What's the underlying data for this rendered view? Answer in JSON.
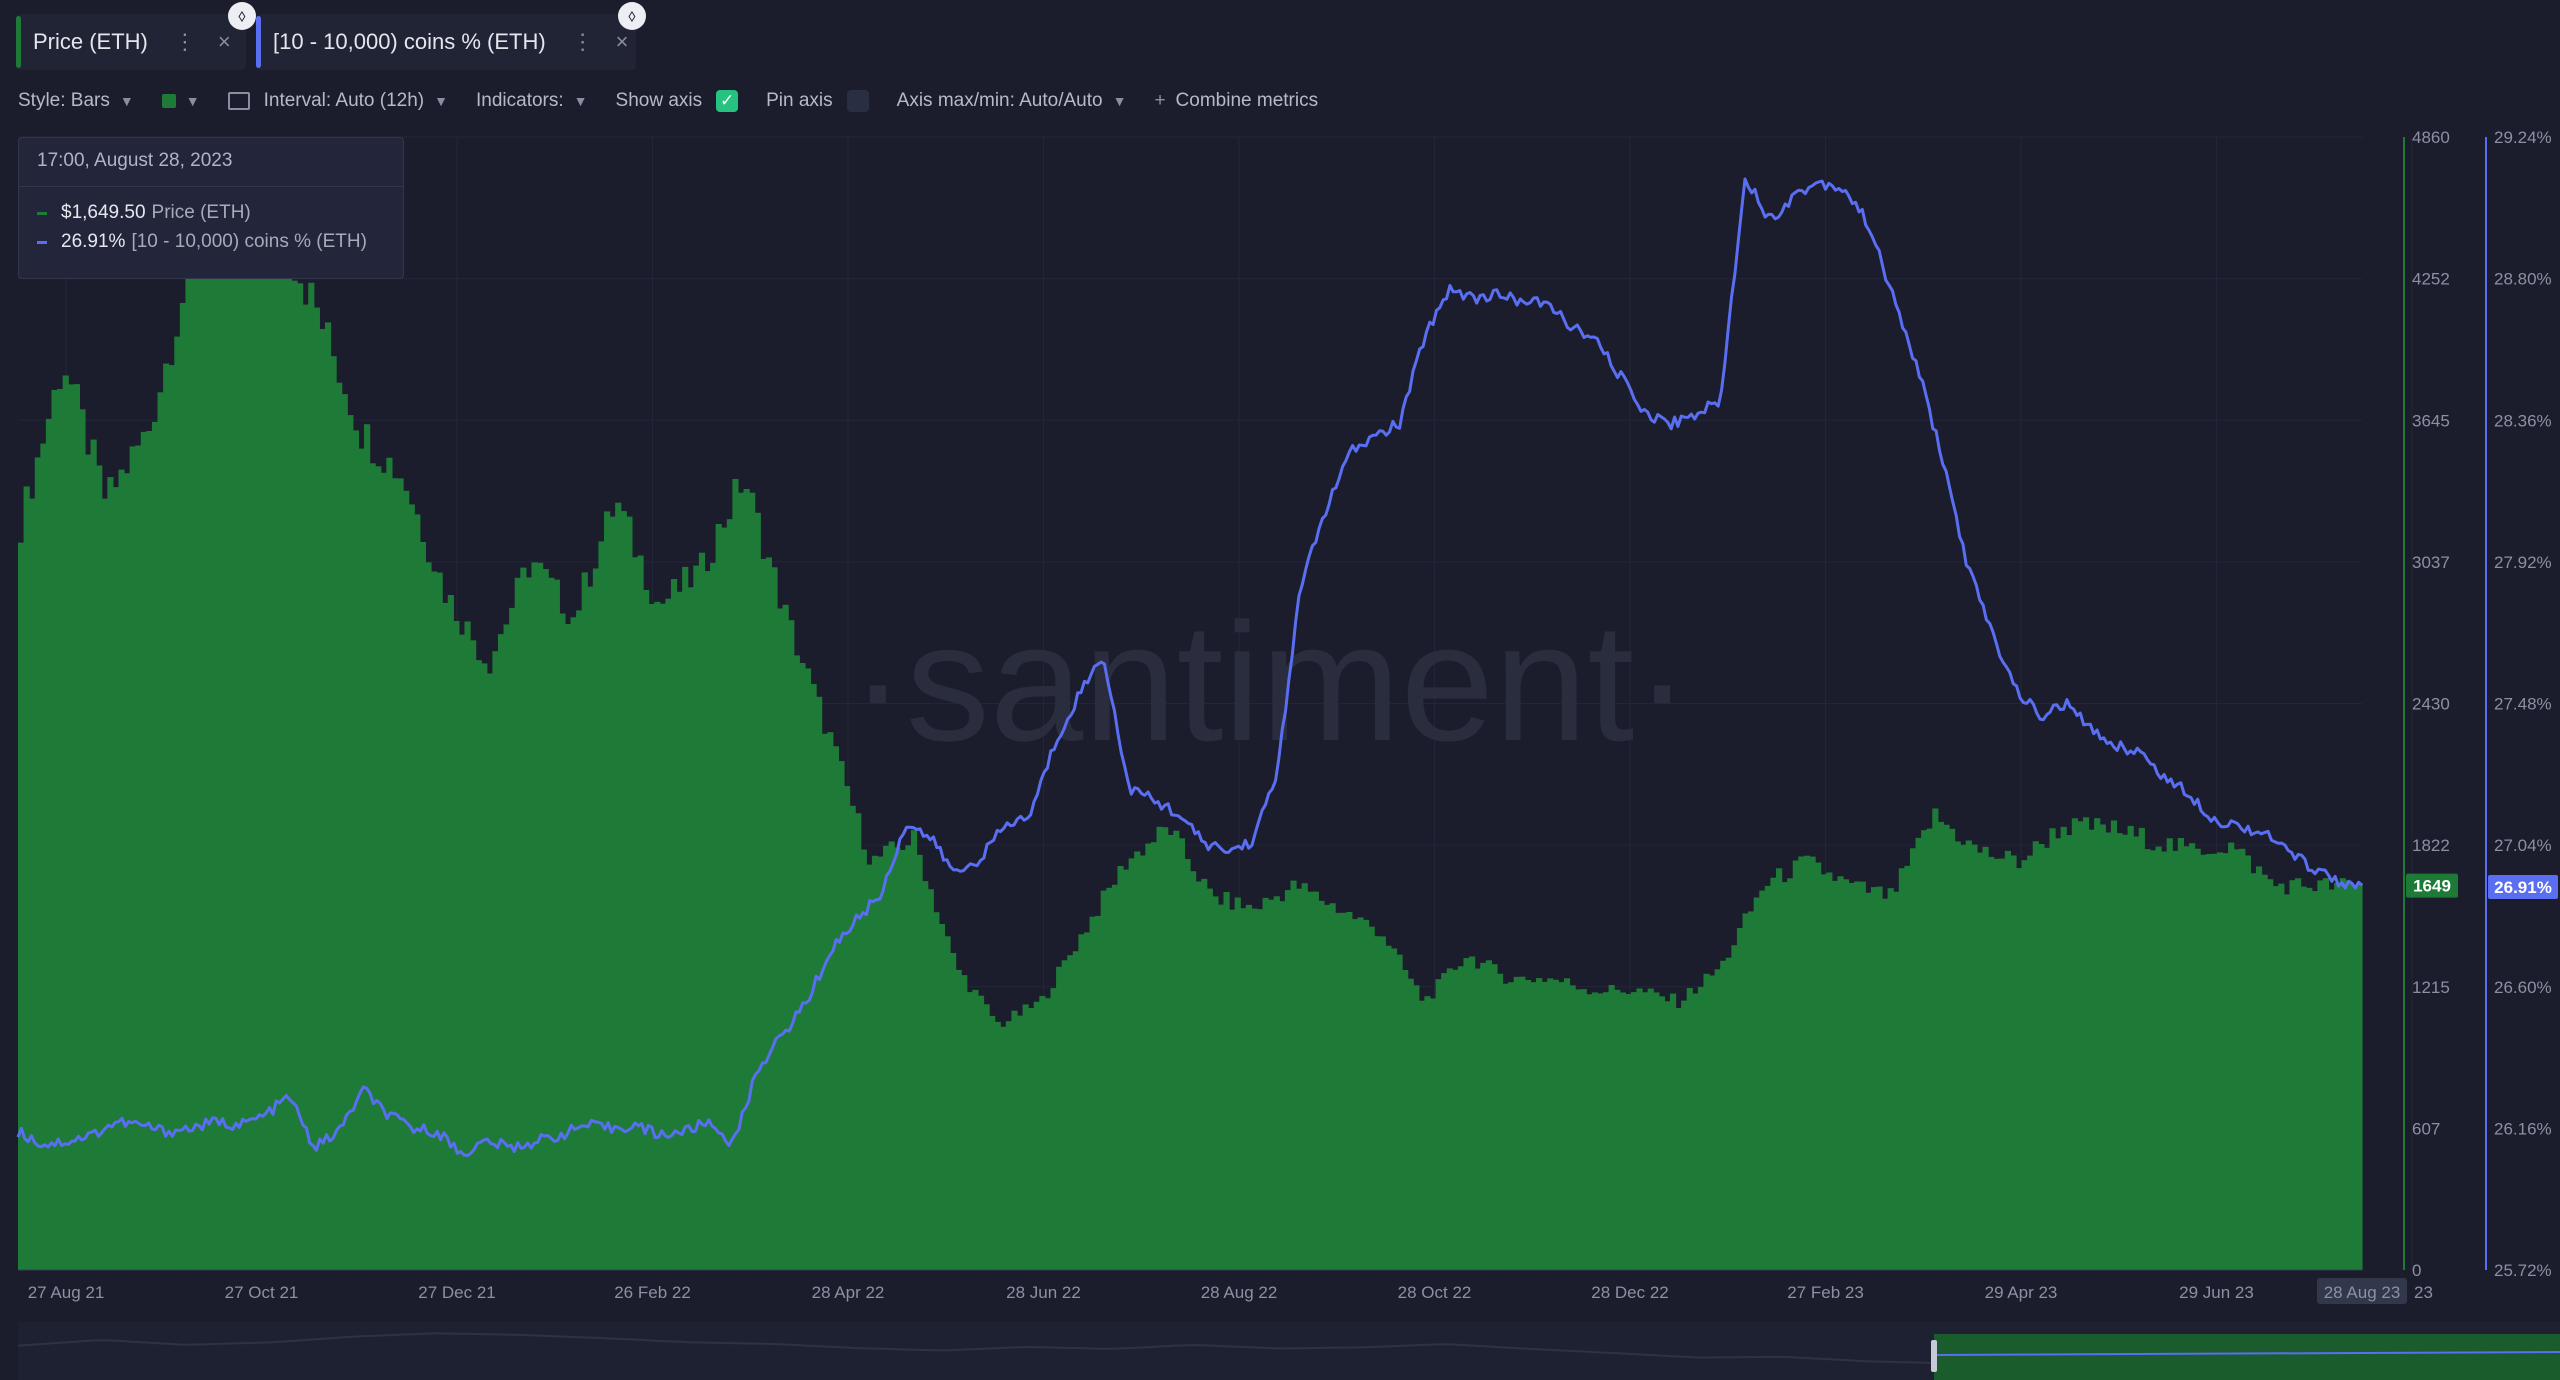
{
  "tabs": [
    {
      "label": "Price (ETH)",
      "color": "#1e7a37"
    },
    {
      "label": "[10 - 10,000) coins % (ETH)",
      "color": "#5a6ef2"
    }
  ],
  "icons": {
    "tab_more": "⋮",
    "tab_close": "×",
    "eth": "⬨",
    "check": "✓",
    "plus": "+"
  },
  "toolbar": {
    "style": "Style: Bars",
    "interval": "Interval: Auto (12h)",
    "indicators": "Indicators:",
    "show_axis": "Show axis",
    "show_axis_checked": true,
    "pin_axis": "Pin axis",
    "pin_axis_checked": false,
    "axis_maxmin": "Axis max/min: Auto/Auto",
    "combine": "Combine metrics"
  },
  "tooltip": {
    "timestamp": "17:00, August 28, 2023",
    "rows": [
      {
        "value": "$1,649.50",
        "name": "Price (ETH)",
        "color": "#1e7a37"
      },
      {
        "value": "26.91%",
        "name": "[10 - 10,000) coins % (ETH)",
        "color": "#5a6ef2"
      }
    ]
  },
  "watermark": "·santiment·",
  "chart_data": {
    "type": "bar+line",
    "x_tick_labels": [
      "27 Aug 21",
      "27 Oct 21",
      "27 Dec 21",
      "26 Feb 22",
      "28 Apr 22",
      "28 Jun 22",
      "28 Aug 22",
      "28 Oct 22",
      "28 Dec 22",
      "27 Feb 23",
      "29 Apr 23",
      "29 Jun 23",
      "28 Aug 23"
    ],
    "x_highlight": "28 Aug 23",
    "x_partial_label": "23",
    "series": [
      {
        "name": "Price (ETH)",
        "kind": "bar",
        "color": "#1e7a37",
        "axis_ticks": [
          "4860",
          "4252",
          "3645",
          "3037",
          "2430",
          "1822",
          "1215",
          "607",
          "0"
        ],
        "ylim": [
          0,
          4860
        ],
        "current_label": "1649",
        "values": [
          3200,
          3900,
          3300,
          3600,
          4300,
          4700,
          4500,
          4100,
          3600,
          3400,
          2900,
          2600,
          3050,
          2800,
          3300,
          2850,
          3000,
          3400,
          2800,
          2300,
          1750,
          1850,
          1300,
          1050,
          1150,
          1450,
          1750,
          1900,
          1600,
          1550,
          1650,
          1550,
          1450,
          1150,
          1350,
          1250,
          1250,
          1200,
          1200,
          1150,
          1300,
          1650,
          1750,
          1650,
          1600,
          1950,
          1800,
          1750,
          1900,
          1900,
          1850,
          1800,
          1820,
          1650,
          1650,
          1649
        ]
      },
      {
        "name": "[10 - 10,000) coins % (ETH)",
        "kind": "line",
        "color": "#5a6ef2",
        "axis_ticks": [
          "29.24%",
          "28.80%",
          "28.36%",
          "27.92%",
          "27.48%",
          "27.04%",
          "26.60%",
          "26.16%",
          "25.72%"
        ],
        "ylim": [
          25.72,
          29.24
        ],
        "current_label": "26.91%",
        "values": [
          26.15,
          26.11,
          26.12,
          26.14,
          26.18,
          26.17,
          26.15,
          26.16,
          26.18,
          26.17,
          26.2,
          26.26,
          26.1,
          26.15,
          26.28,
          26.2,
          26.16,
          26.15,
          26.08,
          26.12,
          26.1,
          26.12,
          26.14,
          26.17,
          26.16,
          26.17,
          26.14,
          26.15,
          26.18,
          26.11,
          26.35,
          26.45,
          26.56,
          26.72,
          26.81,
          26.89,
          27.11,
          27.06,
          26.95,
          27.0,
          27.1,
          27.13,
          27.35,
          27.51,
          27.63,
          27.22,
          27.18,
          27.14,
          27.05,
          27.02,
          27.05,
          27.25,
          27.85,
          28.08,
          28.26,
          28.31,
          28.35,
          28.62,
          28.77,
          28.74,
          28.75,
          28.73,
          28.72,
          28.65,
          28.6,
          28.49,
          28.38,
          28.35,
          28.38,
          28.42,
          29.12,
          28.98,
          29.06,
          29.1,
          29.08,
          28.97,
          28.74,
          28.52,
          28.24,
          27.91,
          27.7,
          27.52,
          27.44,
          27.48,
          27.4,
          27.35,
          27.33,
          27.25,
          27.2,
          27.12,
          27.1,
          27.08,
          27.02,
          26.97,
          26.93,
          26.91
        ]
      }
    ],
    "grid": true,
    "legend": "tooltip top-left"
  }
}
